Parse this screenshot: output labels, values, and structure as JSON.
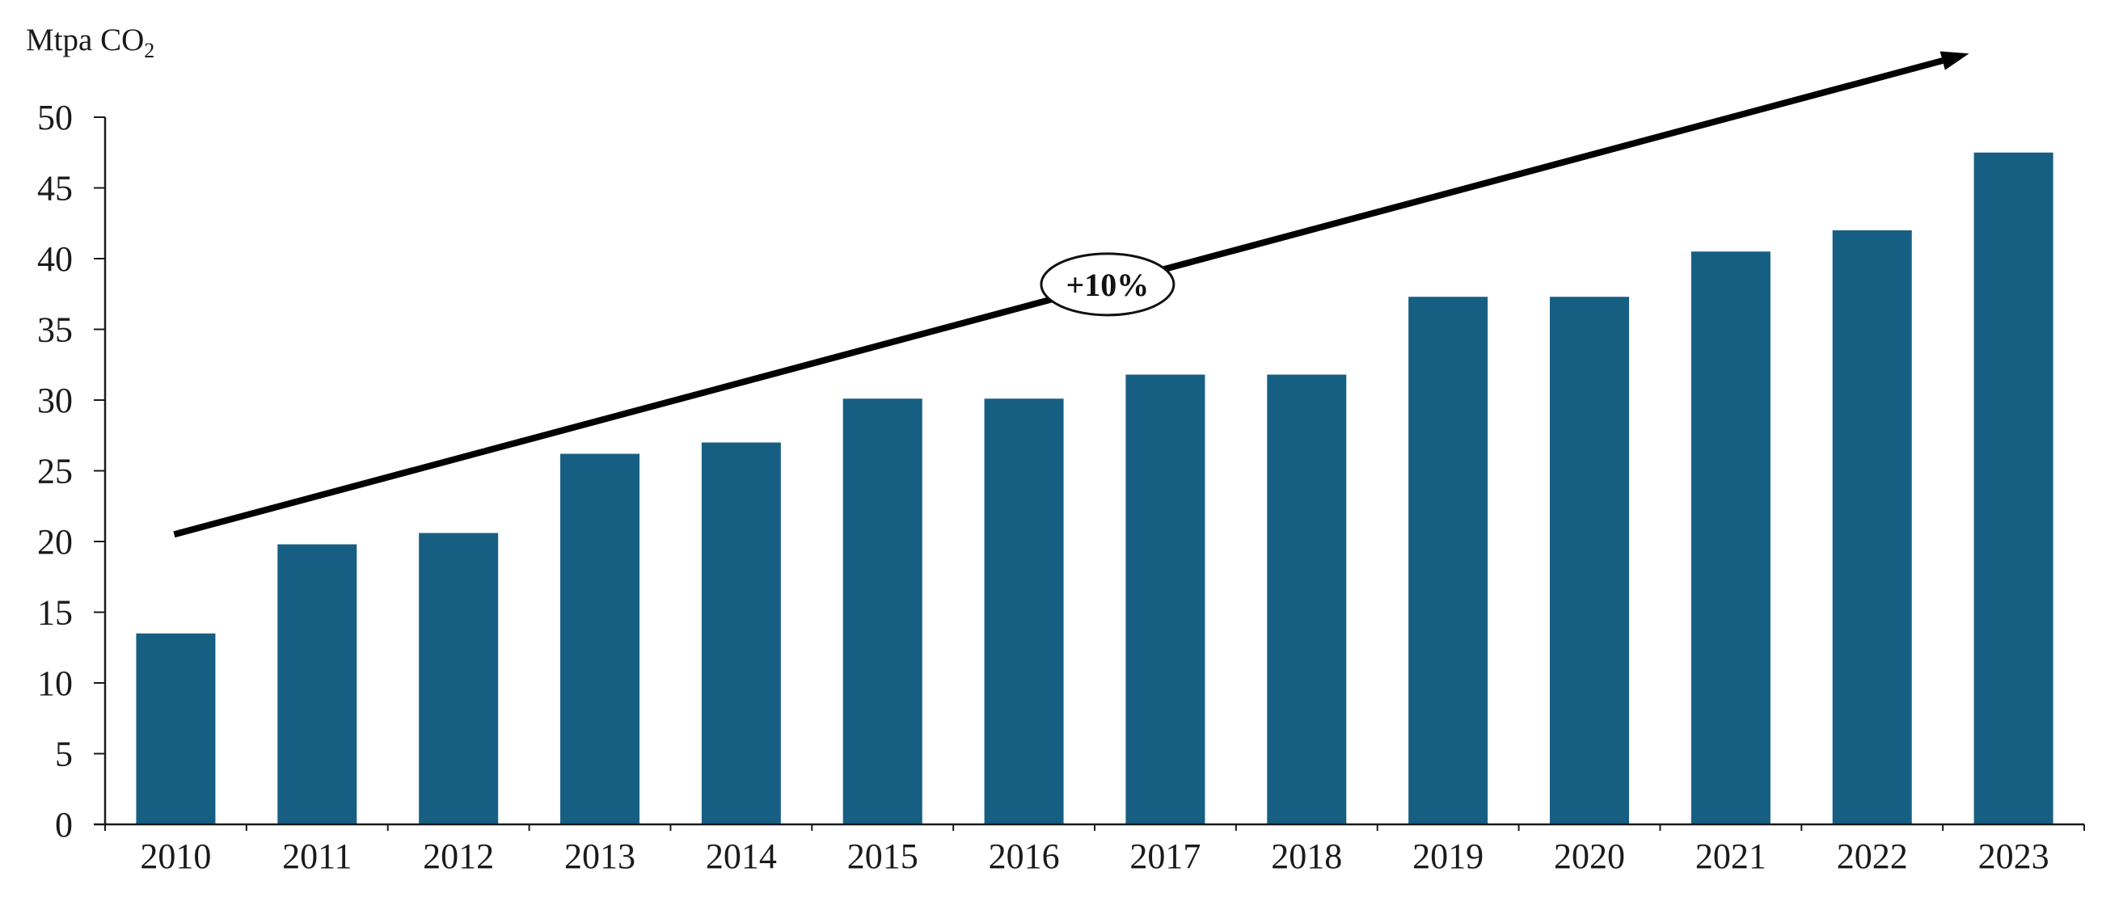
{
  "chart_data": {
    "type": "bar",
    "ylabel": "Mtpa CO",
    "ylabel_subscript": "2",
    "categories": [
      "2010",
      "2011",
      "2012",
      "2013",
      "2014",
      "2015",
      "2016",
      "2017",
      "2018",
      "2019",
      "2020",
      "2021",
      "2022",
      "2023"
    ],
    "series": [
      {
        "values": [
          13.5,
          19.8,
          20.6,
          26.2,
          27.0,
          30.1,
          30.1,
          31.8,
          31.8,
          37.3,
          37.3,
          40.5,
          42.0,
          47.5
        ]
      }
    ],
    "ylim": [
      0,
      50
    ],
    "yticks": [
      0,
      5,
      10,
      15,
      20,
      25,
      30,
      35,
      40,
      45,
      50
    ],
    "grid": false,
    "legend": "none",
    "colors": {
      "bar": "#175f82",
      "axis": "#1a1a1a",
      "arrow": "#000000"
    },
    "annotation": {
      "text": "+10%",
      "type": "trend-arrow",
      "from_value": 20.5,
      "to_value": 54.5
    }
  }
}
